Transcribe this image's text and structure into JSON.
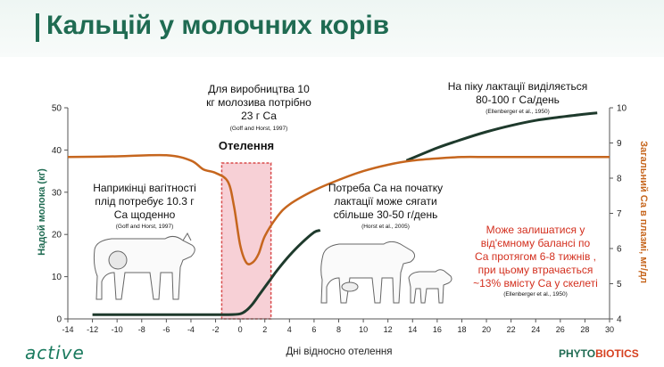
{
  "slide": {
    "title": "Кальцій у молочних корів",
    "logo_left": "active",
    "logo_right_a": "PHYTO",
    "logo_right_b": "BIOTICS"
  },
  "colors": {
    "title": "#1f6b52",
    "milk": "#1e3a2c",
    "calcium": "#c6661e",
    "calving_fill": "#f7d0d6",
    "calving_border": "#d84a4a",
    "red_text": "#d32f1e"
  },
  "chart_data": {
    "type": "line",
    "xlabel": "Дні відносно отелення",
    "ylabel_left": "Надой молока (кг)",
    "ylabel_right": "Загальний Са в плазмі, мг/дл",
    "xlim": [
      -14,
      30
    ],
    "ylim_left": [
      0,
      50
    ],
    "ylim_right": [
      4,
      10
    ],
    "x_ticks": [
      -14,
      -12,
      -10,
      -8,
      -6,
      -4,
      -2,
      0,
      2,
      4,
      6,
      8,
      10,
      12,
      14,
      16,
      18,
      20,
      22,
      24,
      26,
      28,
      30
    ],
    "y_ticks_left": [
      0,
      10,
      20,
      30,
      40,
      50
    ],
    "y_ticks_right": [
      4,
      5,
      6,
      7,
      8,
      9,
      10
    ],
    "calving_window": [
      -1.5,
      2.5
    ],
    "series": [
      {
        "axis": "left",
        "x": [
          -12,
          -8,
          -4,
          -1,
          0,
          0.5,
          1,
          1.5,
          2,
          2.5,
          3,
          4,
          5,
          6,
          6.5
        ],
        "y": [
          1,
          1,
          1,
          1,
          1.2,
          2,
          3.5,
          5.5,
          7.5,
          9.5,
          11.5,
          15,
          18,
          20.5,
          21
        ],
        "ext_x": [
          13.5,
          16,
          18,
          20,
          22,
          24,
          26,
          28,
          29
        ],
        "ext_y": [
          37.5,
          40.5,
          42.5,
          44.3,
          45.8,
          47,
          47.8,
          48.5,
          48.8
        ]
      },
      {
        "axis": "right",
        "x": [
          -14,
          -10,
          -6,
          -4,
          -3,
          -2,
          -1,
          -0.5,
          0,
          0.5,
          1,
          1.5,
          2,
          3,
          4,
          6,
          8,
          10,
          12,
          14,
          16,
          18,
          20,
          22,
          24,
          26,
          28,
          30
        ],
        "y": [
          8.6,
          8.62,
          8.65,
          8.5,
          8.25,
          8.15,
          7.9,
          7.2,
          6.1,
          5.6,
          5.6,
          5.85,
          6.35,
          6.9,
          7.25,
          7.65,
          7.95,
          8.2,
          8.38,
          8.5,
          8.56,
          8.6,
          8.6,
          8.6,
          8.6,
          8.6,
          8.6,
          8.6
        ]
      }
    ],
    "annotations": {
      "calving_label": "Отелення",
      "a1_l1": "Для виробництва  10",
      "a1_l2": "кг  молозива потрібно",
      "a1_l3": "23 г Са",
      "a1_ref": "(Goff and Horst, 1997)",
      "a2_l1": "На піку лактації виділяється",
      "a2_l2": "80-100 г Са/день",
      "a2_ref": "(Ellenberger et al., 1950)",
      "a3_l1": "Наприкінці вагітності",
      "a3_l2": "плід потребує 10.3  г",
      "a3_l3": "Са щоденно",
      "a3_ref": "(Goff and Horst, 1997)",
      "a4_l1": "Потреба  Са на початку",
      "a4_l2": "лактації може сягати",
      "a4_l3": "сбільше 30-50 г/день",
      "a4_ref": "(Horst et al., 2005)",
      "a5_l1": "Може залишатися  у",
      "a5_l2": "від'ємному балансі  по",
      "a5_l3": "Са протягом 6-8 тижнів ,",
      "a5_l4": "при цьому втрачається",
      "a5_l5": "~13% вмісту Са у скелеті",
      "a5_ref": "(Ellenberger et al., 1950)"
    }
  }
}
